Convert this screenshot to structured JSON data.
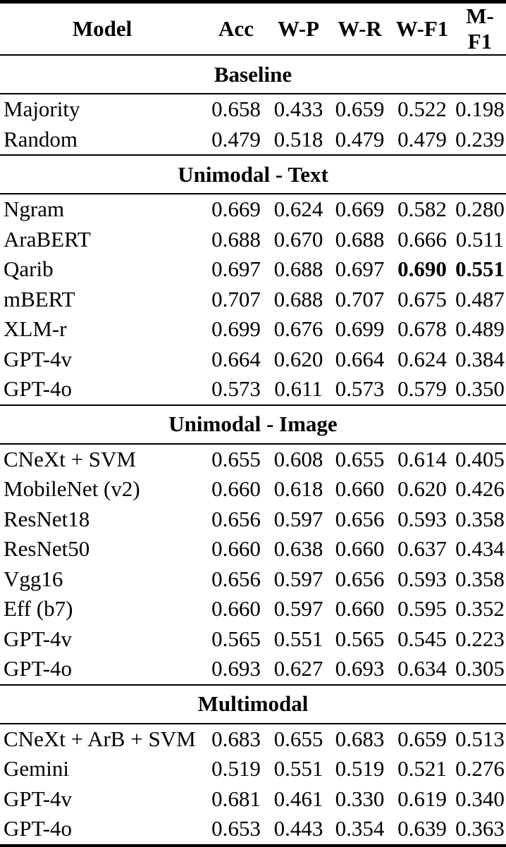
{
  "table": {
    "columns": [
      "Model",
      "Acc",
      "W-P",
      "W-R",
      "W-F1",
      "M-F1"
    ],
    "sections": [
      {
        "label": "Baseline",
        "rows": [
          {
            "model": "Majority",
            "values": [
              "0.658",
              "0.433",
              "0.659",
              "0.522",
              "0.198"
            ],
            "bold": []
          },
          {
            "model": "Random",
            "values": [
              "0.479",
              "0.518",
              "0.479",
              "0.479",
              "0.239"
            ],
            "bold": []
          }
        ]
      },
      {
        "label": "Unimodal - Text",
        "rows": [
          {
            "model": "Ngram",
            "values": [
              "0.669",
              "0.624",
              "0.669",
              "0.582",
              "0.280"
            ],
            "bold": []
          },
          {
            "model": "AraBERT",
            "values": [
              "0.688",
              "0.670",
              "0.688",
              "0.666",
              "0.511"
            ],
            "bold": []
          },
          {
            "model": "Qarib",
            "values": [
              "0.697",
              "0.688",
              "0.697",
              "0.690",
              "0.551"
            ],
            "bold": [
              3,
              4
            ]
          },
          {
            "model": "mBERT",
            "values": [
              "0.707",
              "0.688",
              "0.707",
              "0.675",
              "0.487"
            ],
            "bold": []
          },
          {
            "model": "XLM-r",
            "values": [
              "0.699",
              "0.676",
              "0.699",
              "0.678",
              "0.489"
            ],
            "bold": []
          },
          {
            "model": "GPT-4v",
            "values": [
              "0.664",
              "0.620",
              "0.664",
              "0.624",
              "0.384"
            ],
            "bold": []
          },
          {
            "model": "GPT-4o",
            "values": [
              "0.573",
              "0.611",
              "0.573",
              "0.579",
              "0.350"
            ],
            "bold": []
          }
        ]
      },
      {
        "label": "Unimodal - Image",
        "rows": [
          {
            "model": "CNeXt + SVM",
            "values": [
              "0.655",
              "0.608",
              "0.655",
              "0.614",
              "0.405"
            ],
            "bold": []
          },
          {
            "model": "MobileNet (v2)",
            "values": [
              "0.660",
              "0.618",
              "0.660",
              "0.620",
              "0.426"
            ],
            "bold": []
          },
          {
            "model": "ResNet18",
            "values": [
              "0.656",
              "0.597",
              "0.656",
              "0.593",
              "0.358"
            ],
            "bold": []
          },
          {
            "model": "ResNet50",
            "values": [
              "0.660",
              "0.638",
              "0.660",
              "0.637",
              "0.434"
            ],
            "bold": []
          },
          {
            "model": "Vgg16",
            "values": [
              "0.656",
              "0.597",
              "0.656",
              "0.593",
              "0.358"
            ],
            "bold": []
          },
          {
            "model": "Eff (b7)",
            "values": [
              "0.660",
              "0.597",
              "0.660",
              "0.595",
              "0.352"
            ],
            "bold": []
          },
          {
            "model": "GPT-4v",
            "values": [
              "0.565",
              "0.551",
              "0.565",
              "0.545",
              "0.223"
            ],
            "bold": []
          },
          {
            "model": "GPT-4o",
            "values": [
              "0.693",
              "0.627",
              "0.693",
              "0.634",
              "0.305"
            ],
            "bold": []
          }
        ]
      },
      {
        "label": "Multimodal",
        "rows": [
          {
            "model": "CNeXt + ArB + SVM",
            "values": [
              "0.683",
              "0.655",
              "0.683",
              "0.659",
              "0.513"
            ],
            "bold": []
          },
          {
            "model": "Gemini",
            "values": [
              "0.519",
              "0.551",
              "0.519",
              "0.521",
              "0.276"
            ],
            "bold": []
          },
          {
            "model": "GPT-4v",
            "values": [
              "0.681",
              "0.461",
              "0.330",
              "0.619",
              "0.340"
            ],
            "bold": []
          },
          {
            "model": "GPT-4o",
            "values": [
              "0.653",
              "0.443",
              "0.354",
              "0.639",
              "0.363"
            ],
            "bold": []
          }
        ]
      }
    ]
  }
}
